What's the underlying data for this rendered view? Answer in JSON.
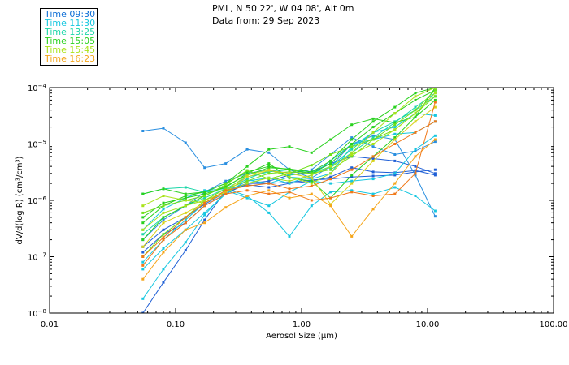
{
  "header": {
    "line1": "PML, N 50 22', W 04 08', Alt 0m",
    "line2": "Data from: 29 Sep 2023"
  },
  "legend": [
    {
      "label": "Time 09:30",
      "color": "#0f6fd6"
    },
    {
      "label": "Time 11:30",
      "color": "#17c7e0"
    },
    {
      "label": "Time 13:25",
      "color": "#1ad6a8"
    },
    {
      "label": "Time 15:05",
      "color": "#29d11e"
    },
    {
      "label": "Time 15:45",
      "color": "#a9e31a"
    },
    {
      "label": "Time 16:23",
      "color": "#f5a51a"
    }
  ],
  "chart_data": {
    "type": "line",
    "xlabel": "Aerosol Size (μm)",
    "ylabel": "dV/d(log R) (cm³/cm³)",
    "xscale": "log",
    "yscale": "log",
    "xlim": [
      0.01,
      100.0
    ],
    "ylim": [
      1e-08,
      0.0001
    ],
    "xticks": [
      {
        "value": 0.01,
        "label": "0.01"
      },
      {
        "value": 0.1,
        "label": "0.10"
      },
      {
        "value": 1.0,
        "label": "1.00"
      },
      {
        "value": 10.0,
        "label": "10.00"
      },
      {
        "value": 100.0,
        "label": "100.00"
      }
    ],
    "yticks": [
      {
        "value": 1e-08,
        "base": "10",
        "exp": "−8"
      },
      {
        "value": 1e-07,
        "base": "10",
        "exp": "−7"
      },
      {
        "value": 1e-06,
        "base": "10",
        "exp": "−6"
      },
      {
        "value": 1e-05,
        "base": "10",
        "exp": "−5"
      },
      {
        "value": 0.0001,
        "base": "10",
        "exp": "−4"
      }
    ],
    "x": [
      0.055,
      0.08,
      0.12,
      0.17,
      0.25,
      0.37,
      0.55,
      0.8,
      1.2,
      1.7,
      2.5,
      3.7,
      5.5,
      8.0,
      11.5
    ],
    "series": [
      {
        "color": "#1f5fd6",
        "values": [
          1.2e-07,
          2.5e-07,
          4e-07,
          8e-07,
          1.3e-06,
          2e-06,
          2e-06,
          2.1e-06,
          2.3e-06,
          2.4e-06,
          2.6e-06,
          2.7e-06,
          2.8e-06,
          3.2e-06,
          3.5e-06
        ]
      },
      {
        "color": "#1f5fd6",
        "values": [
          1.5e-07,
          3e-07,
          5e-07,
          8.5e-07,
          1.4e-06,
          1.9e-06,
          1.7e-06,
          2e-06,
          2.2e-06,
          2.6e-06,
          3.8e-06,
          3.2e-06,
          3.1e-06,
          3.4e-06,
          2.8e-06
        ]
      },
      {
        "color": "#1f5fd6",
        "values": [
          1e-08,
          3.5e-08,
          1.3e-07,
          4.5e-07,
          1.5e-06,
          2e-06,
          2.2e-06,
          2.8e-06,
          3.2e-06,
          4.5e-06,
          6e-06,
          5.5e-06,
          5e-06,
          4e-06,
          3e-06
        ]
      },
      {
        "color": "#2a8fe0",
        "values": [
          1.7e-05,
          1.9e-05,
          1.05e-05,
          3.8e-06,
          4.5e-06,
          8e-06,
          7e-06,
          3.5e-06,
          2.5e-06,
          4e-06,
          1e-05,
          1.4e-05,
          1.2e-05,
          2.8e-06,
          5.2e-07
        ]
      },
      {
        "color": "#2a8fe0",
        "values": [
          2e-07,
          4.5e-07,
          8e-07,
          1.4e-06,
          2.2e-06,
          3e-06,
          3.5e-06,
          3e-06,
          3.5e-06,
          6.5e-06,
          1.3e-05,
          9e-06,
          6.5e-06,
          7.5e-06,
          1.1e-05
        ]
      },
      {
        "color": "#17c7e0",
        "values": [
          1.8e-08,
          6e-08,
          1.8e-07,
          5.5e-07,
          1.4e-06,
          2.2e-06,
          2.5e-06,
          2e-06,
          2.8e-06,
          5e-06,
          1e-05,
          1.2e-05,
          1.5e-05,
          1.6e-05,
          2.5e-05
        ]
      },
      {
        "color": "#17c7e0",
        "values": [
          3e-07,
          7e-07,
          1.1e-06,
          1.5e-06,
          1.6e-06,
          1.2e-06,
          6e-07,
          2.3e-07,
          8e-07,
          1.4e-06,
          1.5e-06,
          1.3e-06,
          1.7e-06,
          1.2e-06,
          6.5e-07
        ]
      },
      {
        "color": "#17c7e0",
        "values": [
          6e-08,
          1.4e-07,
          3e-07,
          6e-07,
          1.3e-06,
          2.3e-06,
          2e-06,
          2.6e-06,
          2.4e-06,
          3e-06,
          9e-06,
          1.6e-05,
          2e-05,
          3.5e-05,
          3.2e-05
        ]
      },
      {
        "color": "#17c7e0",
        "values": [
          8e-08,
          2e-07,
          4.5e-07,
          9e-07,
          1.5e-06,
          1.1e-06,
          8e-07,
          1.4e-06,
          2.2e-06,
          2e-06,
          2.2e-06,
          2.4e-06,
          3e-06,
          8e-06,
          1.4e-05
        ]
      },
      {
        "color": "#1ad6a8",
        "values": [
          1.3e-06,
          1.6e-06,
          1.7e-06,
          1.4e-06,
          1.5e-06,
          2.4e-06,
          3.4e-06,
          2.8e-06,
          3e-06,
          4e-06,
          8e-06,
          1.6e-05,
          2.5e-05,
          4e-05,
          7e-05
        ]
      },
      {
        "color": "#1ad6a8",
        "values": [
          2.5e-07,
          5e-07,
          8e-07,
          1.1e-06,
          1.6e-06,
          2.6e-06,
          3.2e-06,
          3.5e-06,
          3.2e-06,
          3.8e-06,
          7e-06,
          1.3e-05,
          2.4e-05,
          4.5e-05,
          8e-05
        ]
      },
      {
        "color": "#29d11e",
        "values": [
          1.3e-06,
          1.6e-06,
          1.3e-06,
          1.4e-06,
          2e-06,
          3.2e-06,
          4e-06,
          3.5e-06,
          3e-06,
          4.5e-06,
          1e-05,
          2e-05,
          3.5e-05,
          6e-05,
          9e-05
        ]
      },
      {
        "color": "#29d11e",
        "values": [
          4e-07,
          8e-07,
          1.2e-06,
          1.4e-06,
          2e-06,
          4e-06,
          8e-06,
          9e-06,
          7e-06,
          1.2e-05,
          2.2e-05,
          2.8e-05,
          2.4e-05,
          3e-05,
          6e-05
        ]
      },
      {
        "color": "#29d11e",
        "values": [
          5e-07,
          9e-07,
          1.1e-06,
          1.3e-06,
          1.7e-06,
          3e-06,
          4.5e-06,
          2.5e-06,
          2.2e-06,
          1.1e-06,
          2.8e-06,
          6e-06,
          1.3e-05,
          3e-05,
          0.0001
        ]
      },
      {
        "color": "#29d11e",
        "values": [
          2e-07,
          5e-07,
          8e-07,
          1.2e-06,
          1.8e-06,
          2.8e-06,
          3.8e-06,
          3.6e-06,
          3.2e-06,
          5e-06,
          1.2e-05,
          2.5e-05,
          4.5e-05,
          8e-05,
          0.0001
        ]
      },
      {
        "color": "#6fe01a",
        "values": [
          1e-07,
          2.5e-07,
          5e-07,
          1e-06,
          1.6e-06,
          2.2e-06,
          3e-06,
          3.2e-06,
          3e-06,
          3.5e-06,
          6e-06,
          1.2e-05,
          2.2e-05,
          4e-05,
          9e-05
        ]
      },
      {
        "color": "#6fe01a",
        "values": [
          6e-07,
          8e-07,
          1e-06,
          1.2e-06,
          1.9e-06,
          3.4e-06,
          2.4e-06,
          3e-06,
          4.2e-06,
          6.5e-06,
          9e-06,
          1.2e-05,
          1.8e-05,
          3.5e-05,
          7e-05
        ]
      },
      {
        "color": "#a9e31a",
        "values": [
          8e-07,
          1.2e-06,
          1e-06,
          9e-07,
          1.5e-06,
          2.8e-06,
          3.5e-06,
          2.6e-06,
          2e-06,
          3e-06,
          7e-06,
          1.6e-05,
          3.5e-05,
          7e-05,
          0.0001
        ]
      },
      {
        "color": "#a9e31a",
        "values": [
          3e-07,
          6e-07,
          8e-07,
          1e-06,
          1.4e-06,
          2e-06,
          2.5e-06,
          2.2e-06,
          2.8e-06,
          4e-06,
          6.5e-06,
          1e-05,
          1.8e-05,
          3.5e-05,
          8e-05
        ]
      },
      {
        "color": "#d8d21a",
        "values": [
          1.5e-07,
          4e-07,
          6e-07,
          9e-07,
          1.4e-06,
          2.6e-06,
          3.4e-06,
          3e-06,
          2.5e-06,
          8.5e-07,
          2e-06,
          5e-06,
          1.2e-05,
          2.5e-05,
          4.5e-05
        ]
      },
      {
        "color": "#f5a51a",
        "values": [
          4e-08,
          1.2e-07,
          3e-07,
          4e-07,
          7.5e-07,
          1.2e-06,
          1.5e-06,
          1.1e-06,
          1.3e-06,
          8e-07,
          2.3e-07,
          7e-07,
          2e-06,
          6e-06,
          1.2e-05
        ]
      },
      {
        "color": "#f07818",
        "values": [
          7e-08,
          2e-07,
          4e-07,
          8e-07,
          1.3e-06,
          1.5e-06,
          1.3e-06,
          1.4e-06,
          1e-06,
          1.1e-06,
          1.4e-06,
          1.2e-06,
          1.3e-06,
          3e-06,
          5.5e-05
        ]
      },
      {
        "color": "#f07818",
        "values": [
          1e-07,
          2.2e-07,
          5e-07,
          9e-07,
          1.5e-06,
          1.8e-06,
          2e-06,
          1.6e-06,
          1.8e-06,
          2.4e-06,
          3.5e-06,
          6e-06,
          1e-05,
          1.6e-05,
          2.5e-05
        ]
      }
    ]
  }
}
